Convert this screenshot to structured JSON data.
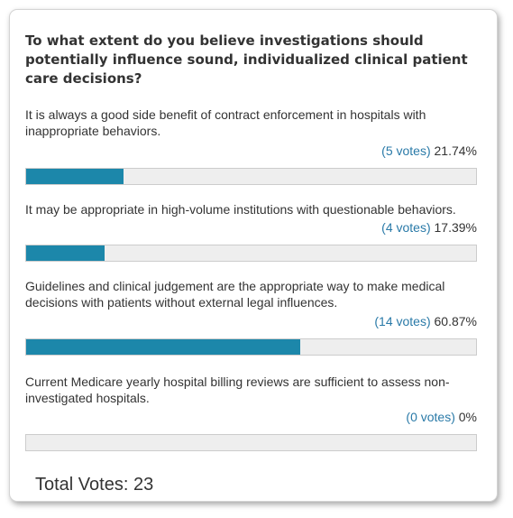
{
  "poll": {
    "question": "To what extent do you believe investigations should potentially influence sound, individualized clinical patient care decisions?",
    "answers": [
      {
        "text": "It is always a good side benefit of contract enforcement in hospitals with inappropriate behaviors.",
        "votes": "(5 votes)",
        "percent": "21.74%",
        "fraction": 0.2174
      },
      {
        "text": "It may be appropriate in high-volume institutions with questionable behaviors.",
        "votes": "(4 votes)",
        "percent": "17.39%",
        "fraction": 0.1739
      },
      {
        "text": "Guidelines and clinical judgement are the appropriate way to make medical decisions with patients without external legal influences.",
        "votes": "(14 votes)",
        "percent": "60.87%",
        "fraction": 0.6087
      },
      {
        "text": "Current Medicare yearly hospital billing reviews are sufficient to assess non-investigated hospitals.",
        "votes": "(0 votes)",
        "percent": "0%",
        "fraction": 0
      }
    ],
    "total_label": "Total Votes: 23"
  },
  "colors": {
    "bar_fill": "#1c87aa",
    "bar_track": "#eeeeee",
    "vote_count": "#2a7aa8"
  }
}
